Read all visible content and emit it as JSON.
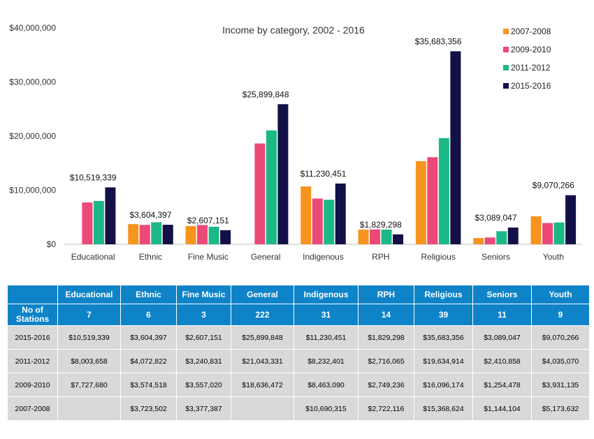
{
  "chart_data": {
    "type": "bar",
    "title": "Income by category, 2002 - 2016",
    "categories": [
      "Educational",
      "Ethnic",
      "Fine Music",
      "General",
      "Indigenous",
      "RPH",
      "Religious",
      "Seniors",
      "Youth"
    ],
    "series": [
      {
        "name": "2007-2008",
        "color": "#f7941d",
        "values": [
          null,
          3723502,
          3377387,
          null,
          10690315,
          2722116,
          15368624,
          1144104,
          5173632
        ]
      },
      {
        "name": "2009-2010",
        "color": "#ec4878",
        "values": [
          7727680,
          3574518,
          3557020,
          18636472,
          8463090,
          2749236,
          16096174,
          1254478,
          3931135
        ]
      },
      {
        "name": "2011-2012",
        "color": "#1db887",
        "values": [
          8003658,
          4072822,
          3240831,
          21043331,
          8232401,
          2716065,
          19634914,
          2410858,
          4035070
        ]
      },
      {
        "name": "2015-2016",
        "color": "#131047",
        "values": [
          10519339,
          3604397,
          2607151,
          25899848,
          11230451,
          1829298,
          35683356,
          3089047,
          9070266
        ]
      }
    ],
    "data_labels": [
      "$10,519,339",
      "$3,604,397",
      "$2,607,151",
      "$25,899,848",
      "$11,230,451",
      "$1,829,298",
      "$35,683,356",
      "$3,089,047",
      "$9,070,266"
    ],
    "y_ticks": [
      0,
      10000000,
      20000000,
      30000000,
      40000000
    ],
    "y_tick_labels": [
      "$0",
      "$10,000,000",
      "$20,000,000",
      "$30,000,000",
      "$40,000,000"
    ],
    "ylim": [
      0,
      40000000
    ],
    "legend_position": "top-right",
    "grid": false
  },
  "table": {
    "header": [
      "Educational",
      "Ethnic",
      "Fine Music",
      "General",
      "Indigenous",
      "RPH",
      "Religious",
      "Seniors",
      "Youth"
    ],
    "stations_label": "No of Stations",
    "stations": [
      "7",
      "6",
      "3",
      "222",
      "31",
      "14",
      "39",
      "11",
      "9"
    ],
    "rows": [
      {
        "label": "2015-2016",
        "cells": [
          "$10,519,339",
          "$3,604,397",
          "$2,607,151",
          "$25,899,848",
          "$11,230,451",
          "$1,829,298",
          "$35,683,356",
          "$3,089,047",
          "$9,070,266"
        ]
      },
      {
        "label": "2011-2012",
        "cells": [
          "$8,003,658",
          "$4,072,822",
          "$3,240,831",
          "$21,043,331",
          "$8,232,401",
          "$2,716,065",
          "$19,634,914",
          "$2,410,858",
          "$4,035,070"
        ]
      },
      {
        "label": "2009-2010",
        "cells": [
          "$7,727,680",
          "$3,574,518",
          "$3,557,020",
          "$18,636,472",
          "$8,463,090",
          "$2,749,236",
          "$16,096,174",
          "$1,254,478",
          "$3,931,135"
        ]
      },
      {
        "label": "2007-2008",
        "cells": [
          "",
          "$3,723,502",
          "$3,377,387",
          "",
          "$10,690,315",
          "$2,722,116",
          "$15,368,624",
          "$1,144,104",
          "$5,173,632"
        ]
      }
    ]
  }
}
